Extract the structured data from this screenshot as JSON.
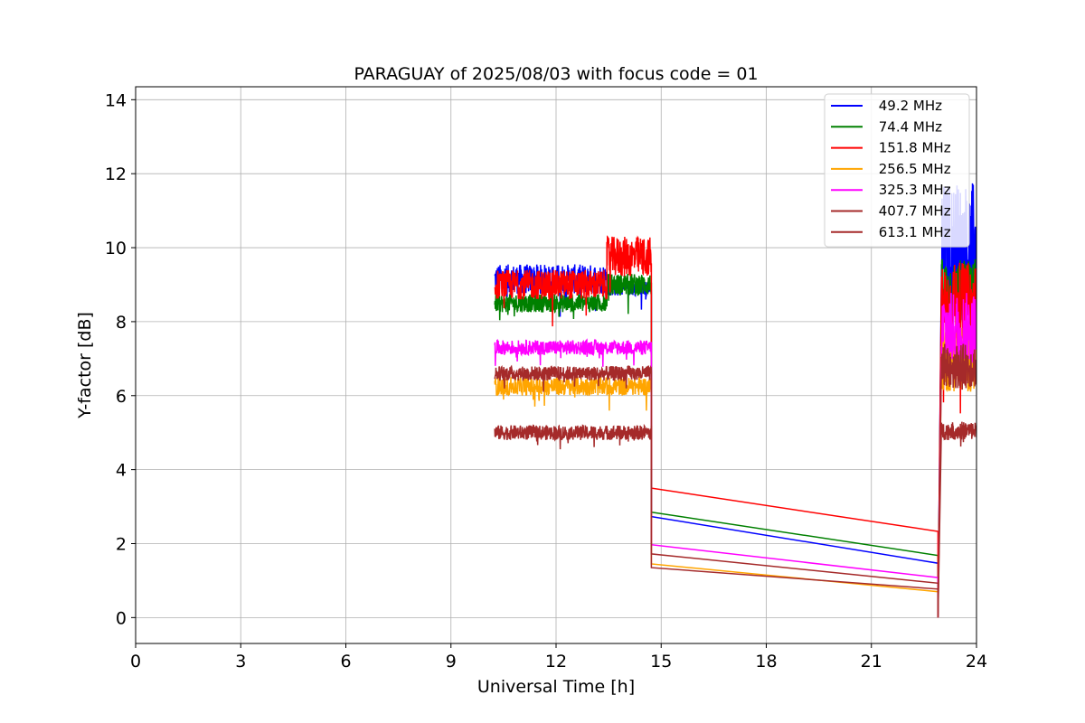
{
  "chart_data": {
    "type": "line",
    "title": "PARAGUAY of 2025/08/03 with focus code = 01",
    "xlabel": "Universal Time [h]",
    "ylabel": "Y-factor [dB]",
    "xlim": [
      0,
      24
    ],
    "ylim": [
      -0.7,
      14.35
    ],
    "xticks": [
      0,
      3,
      6,
      9,
      12,
      15,
      18,
      21,
      24
    ],
    "yticks": [
      0,
      2,
      4,
      6,
      8,
      10,
      12,
      14
    ],
    "grid": true,
    "legend_position": "top-right",
    "series": [
      {
        "name": " 49.2 MHz",
        "color": "#0000ff",
        "segments": [
          {
            "x_start": 10.25,
            "x_end": 13.45,
            "mean": 9.15,
            "noise": 0.4
          },
          {
            "x_start": 13.45,
            "x_end": 14.72,
            "mean": 8.9,
            "noise": 0.2
          },
          {
            "x_start": 23.0,
            "x_end": 24.0,
            "mean": 9.8,
            "noise": 2.0
          }
        ],
        "gap_line": [
          [
            14.72,
            2.73
          ],
          [
            22.9,
            1.47
          ]
        ]
      },
      {
        "name": " 74.4 MHz",
        "color": "#008000",
        "segments": [
          {
            "x_start": 10.25,
            "x_end": 13.45,
            "mean": 8.5,
            "noise": 0.25
          },
          {
            "x_start": 13.45,
            "x_end": 14.72,
            "mean": 9.0,
            "noise": 0.3
          },
          {
            "x_start": 23.0,
            "x_end": 24.0,
            "mean": 8.8,
            "noise": 0.9
          }
        ],
        "gap_line": [
          [
            14.72,
            2.85
          ],
          [
            22.9,
            1.68
          ]
        ]
      },
      {
        "name": " 151.8 MHz",
        "color": "#ff0000",
        "segments": [
          {
            "x_start": 10.25,
            "x_end": 13.45,
            "mean": 9.0,
            "noise": 0.4
          },
          {
            "x_start": 13.45,
            "x_end": 14.72,
            "mean": 9.75,
            "noise": 0.55
          },
          {
            "x_start": 23.0,
            "x_end": 24.0,
            "mean": 8.4,
            "noise": 1.2
          }
        ],
        "gap_line": [
          [
            14.72,
            3.5
          ],
          [
            22.9,
            2.33
          ]
        ]
      },
      {
        "name": " 256.5 MHz",
        "color": "#ffa500",
        "segments": [
          {
            "x_start": 10.25,
            "x_end": 14.72,
            "mean": 6.25,
            "noise": 0.25
          },
          {
            "x_start": 23.0,
            "x_end": 24.0,
            "mean": 7.0,
            "noise": 0.9
          }
        ],
        "gap_line": [
          [
            14.72,
            1.45
          ],
          [
            22.9,
            0.7
          ]
        ]
      },
      {
        "name": " 325.3 MHz",
        "color": "#ff00ff",
        "segments": [
          {
            "x_start": 10.25,
            "x_end": 14.72,
            "mean": 7.3,
            "noise": 0.2
          },
          {
            "x_start": 23.0,
            "x_end": 24.0,
            "mean": 7.8,
            "noise": 1.0
          }
        ],
        "gap_line": [
          [
            14.72,
            1.97
          ],
          [
            22.9,
            1.08
          ]
        ]
      },
      {
        "name": " 407.7 MHz",
        "color": "#a52a2a",
        "segments": [
          {
            "x_start": 10.25,
            "x_end": 14.72,
            "mean": 6.6,
            "noise": 0.2
          },
          {
            "x_start": 23.0,
            "x_end": 24.0,
            "mean": 6.8,
            "noise": 0.6
          }
        ],
        "gap_line": [
          [
            14.72,
            1.72
          ],
          [
            22.9,
            0.93
          ]
        ]
      },
      {
        "name": " 613.1 MHz",
        "color": "#a52a2a",
        "segments": [
          {
            "x_start": 10.25,
            "x_end": 14.72,
            "mean": 5.0,
            "noise": 0.2
          },
          {
            "x_start": 23.0,
            "x_end": 24.0,
            "mean": 5.05,
            "noise": 0.25
          }
        ],
        "gap_line": [
          [
            14.72,
            1.35
          ],
          [
            22.9,
            0.77
          ]
        ]
      }
    ]
  }
}
